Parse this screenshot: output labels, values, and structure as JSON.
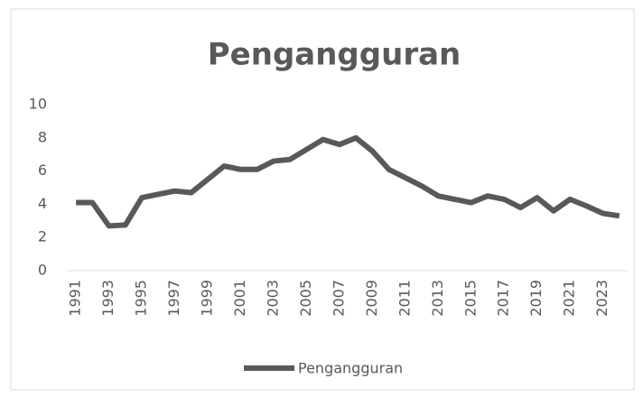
{
  "chart_data": {
    "type": "line",
    "title": "Pengangguran",
    "categories": [
      "1991",
      null,
      "1993",
      null,
      "1995",
      null,
      "1997",
      null,
      "1999",
      null,
      "2001",
      null,
      "2003",
      null,
      "2005",
      null,
      "2007",
      null,
      "2009",
      null,
      "2011",
      null,
      "2013",
      null,
      "2015",
      null,
      "2017",
      null,
      "2019",
      null,
      "2021",
      null,
      "2023",
      null
    ],
    "series": [
      {
        "name": "Pengangguran",
        "color": "#595959",
        "values": [
          4.1,
          4.1,
          2.7,
          2.75,
          4.4,
          4.6,
          4.8,
          4.7,
          5.5,
          6.3,
          6.1,
          6.1,
          6.6,
          6.7,
          7.3,
          7.9,
          7.6,
          8.0,
          7.2,
          6.1,
          5.6,
          5.1,
          4.5,
          4.3,
          4.1,
          4.5,
          4.3,
          3.8,
          4.4,
          3.6,
          4.3,
          3.9,
          3.45,
          3.3
        ]
      }
    ],
    "ylim": [
      0,
      10
    ],
    "yticks": [
      0,
      2,
      4,
      6,
      8,
      10
    ],
    "grid": false,
    "legend": "bottom"
  }
}
